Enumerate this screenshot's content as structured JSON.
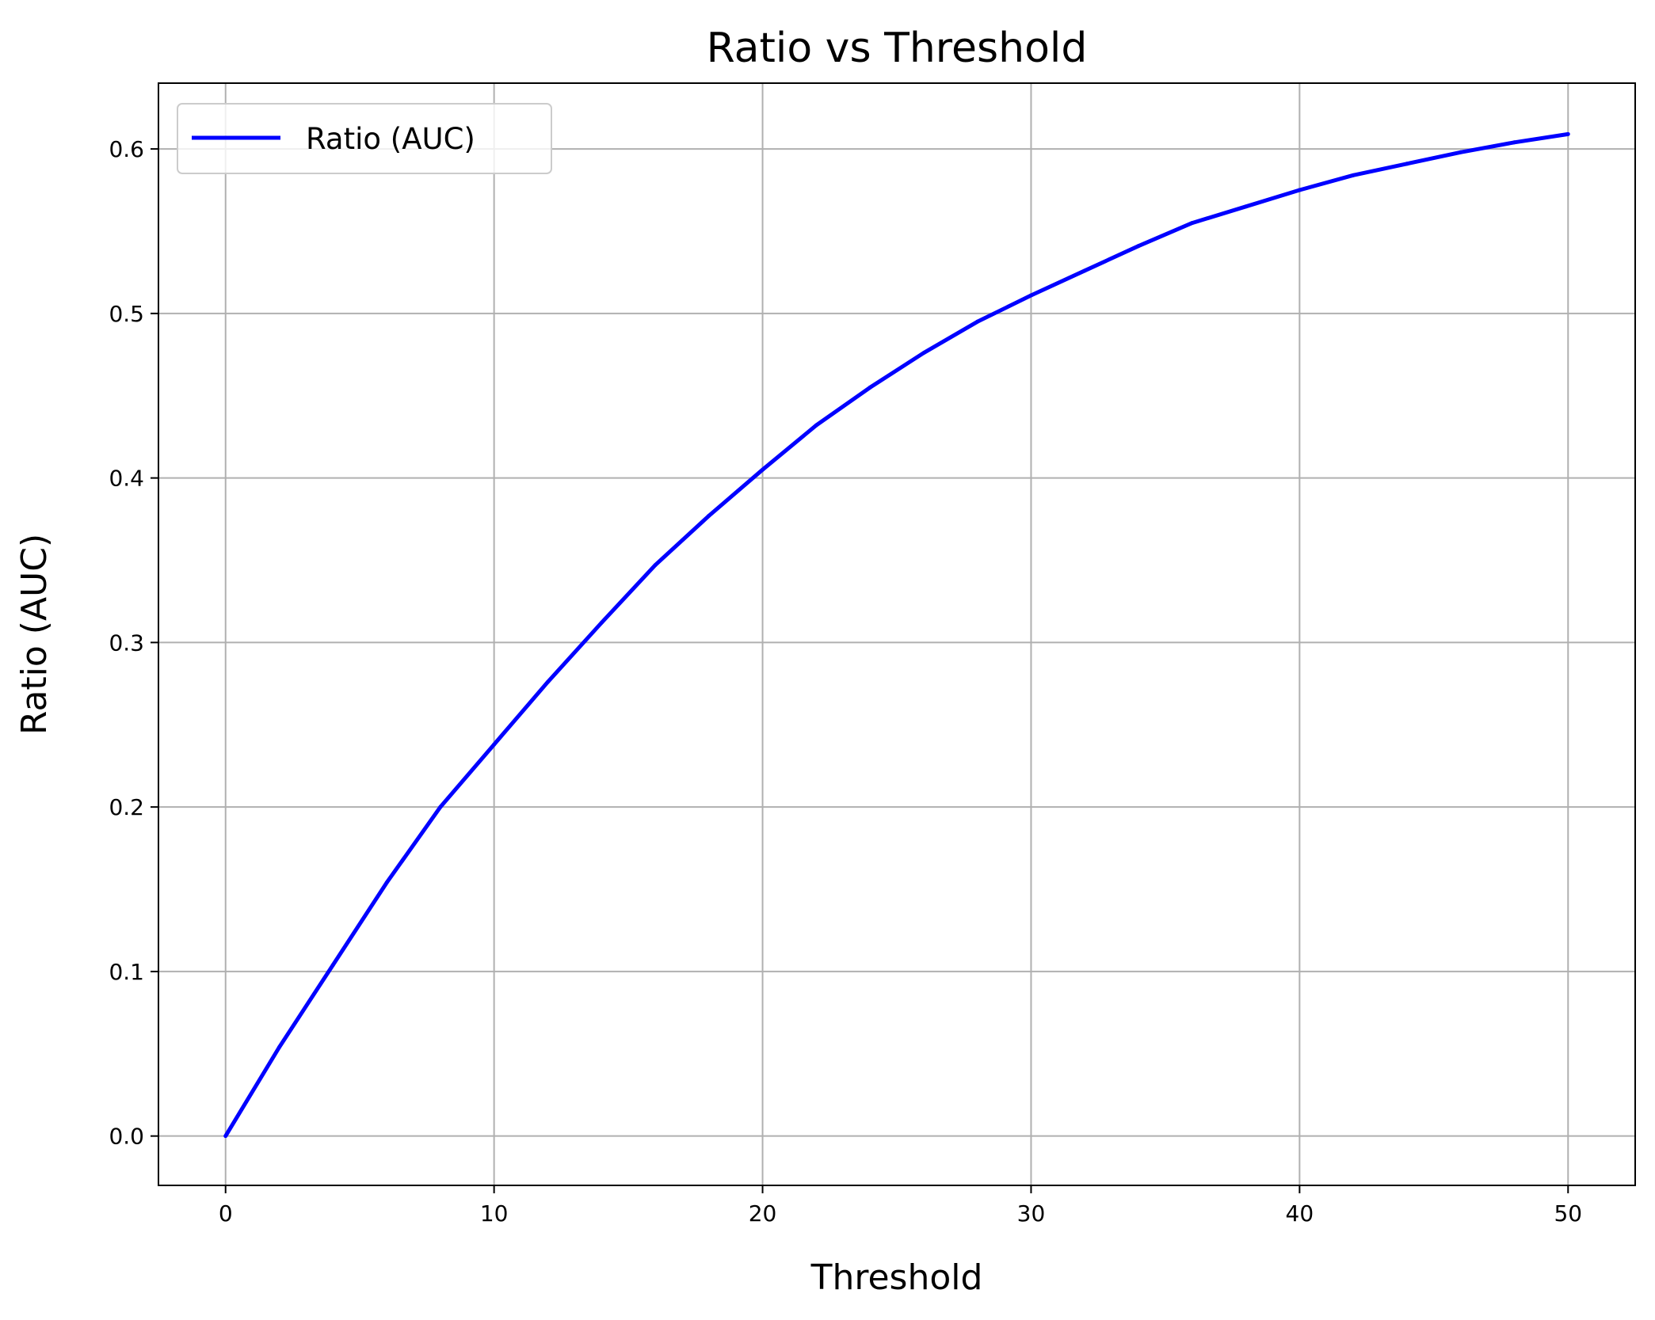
{
  "chart_data": {
    "type": "line",
    "title": "Ratio vs Threshold",
    "xlabel": "Threshold",
    "ylabel": "Ratio (AUC)",
    "xlim": [
      -2.5,
      52.5
    ],
    "ylim": [
      -0.03,
      0.64
    ],
    "xticks": [
      0,
      10,
      20,
      30,
      40,
      50
    ],
    "xtick_labels": [
      "0",
      "10",
      "20",
      "30",
      "40",
      "50"
    ],
    "yticks": [
      0.0,
      0.1,
      0.2,
      0.3,
      0.4,
      0.5,
      0.6
    ],
    "ytick_labels": [
      "0.0",
      "0.1",
      "0.2",
      "0.3",
      "0.4",
      "0.5",
      "0.6"
    ],
    "grid": true,
    "legend_position": "upper-left",
    "series": [
      {
        "name": "Ratio (AUC)",
        "color": "#0000ff",
        "x": [
          0,
          2,
          4,
          6,
          8,
          10,
          12,
          14,
          16,
          18,
          20,
          22,
          24,
          26,
          28,
          30,
          32,
          34,
          36,
          38,
          40,
          42,
          44,
          46,
          48,
          50
        ],
        "y": [
          0.0,
          0.054,
          0.104,
          0.154,
          0.2,
          0.238,
          0.276,
          0.312,
          0.347,
          0.377,
          0.405,
          0.432,
          0.455,
          0.476,
          0.495,
          0.511,
          0.526,
          0.541,
          0.555,
          0.565,
          0.575,
          0.584,
          0.591,
          0.598,
          0.604,
          0.609
        ]
      }
    ]
  }
}
